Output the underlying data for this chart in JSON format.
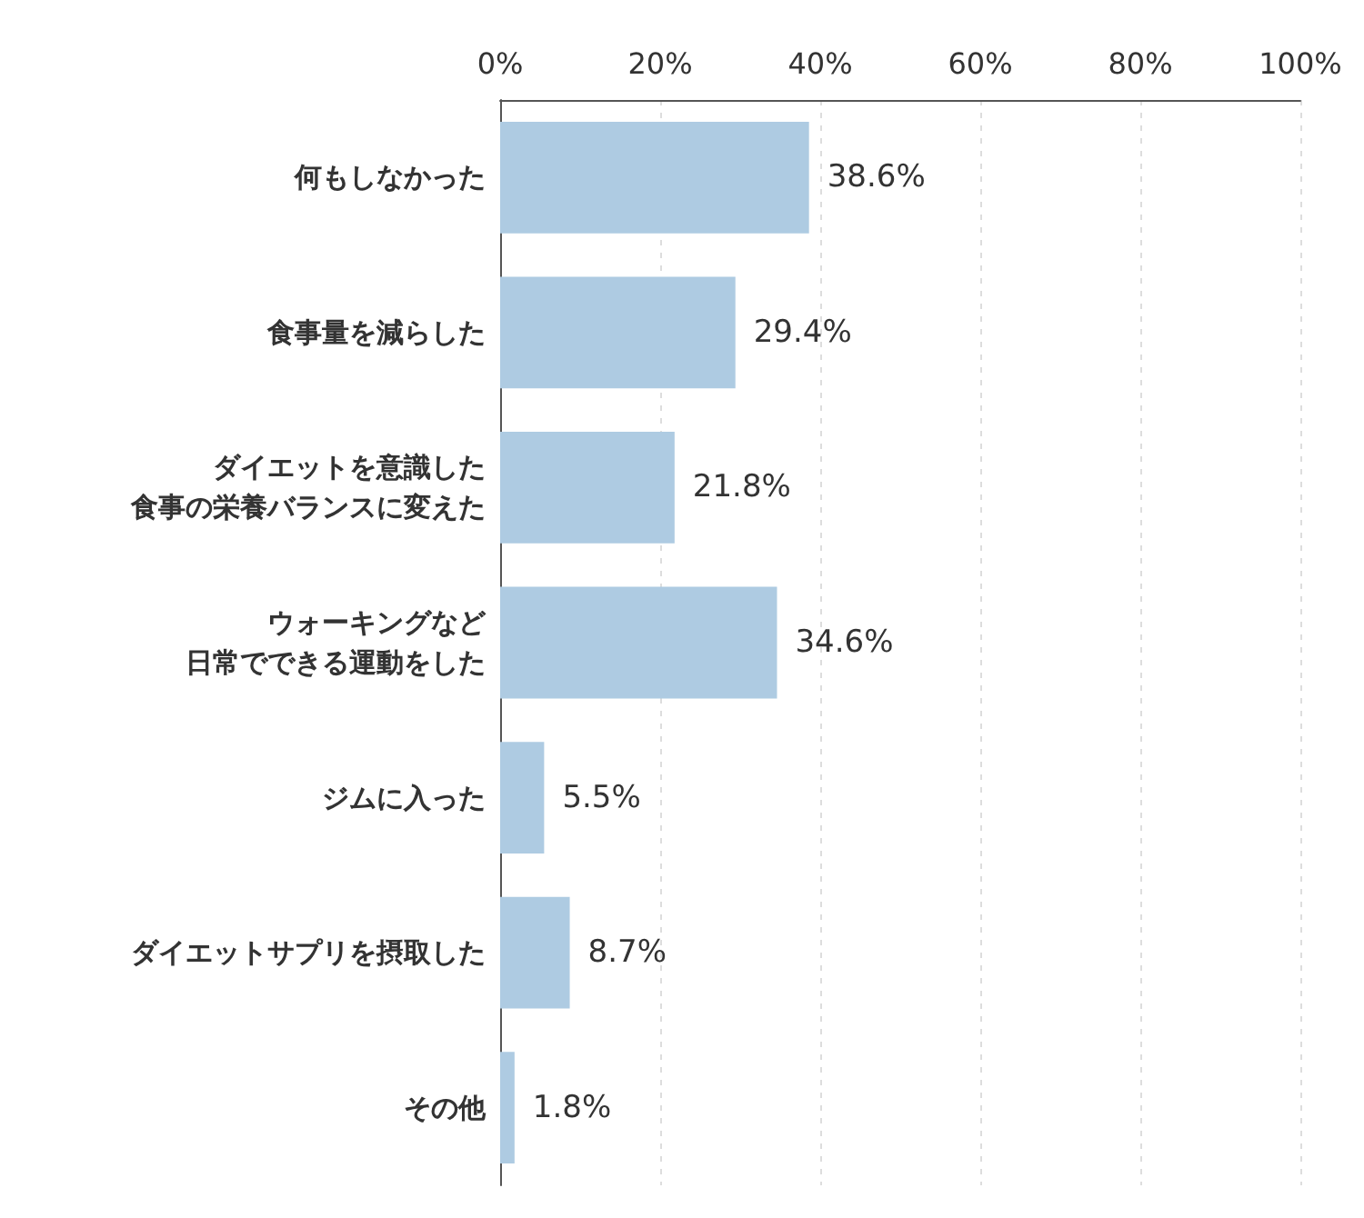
{
  "chart_data": {
    "type": "bar",
    "orientation": "horizontal",
    "categories": [
      "何もしなかった",
      "食事量を減らした",
      "ダイエットを意識した食事の栄養バランスに変えた",
      "ウォーキングなど日常でできる運動をした",
      "ジムに入った",
      "ダイエットサプリを摂取した",
      "その他"
    ],
    "values": [
      38.6,
      29.4,
      21.8,
      34.6,
      5.5,
      8.7,
      1.8
    ],
    "value_labels": [
      "38.6%",
      "29.4%",
      "21.8%",
      "34.6%",
      "5.5%",
      "8.7%",
      "1.8%"
    ],
    "color": "#aecbe2",
    "xlim": [
      0,
      100
    ],
    "xticks": [
      {
        "value": 0,
        "label": "0%"
      },
      {
        "value": 20,
        "label": "20%"
      },
      {
        "value": 40,
        "label": "40%"
      },
      {
        "value": 60,
        "label": "60%"
      },
      {
        "value": 80,
        "label": "80%"
      },
      {
        "value": 100,
        "label": "100%"
      }
    ],
    "grid": "x"
  }
}
